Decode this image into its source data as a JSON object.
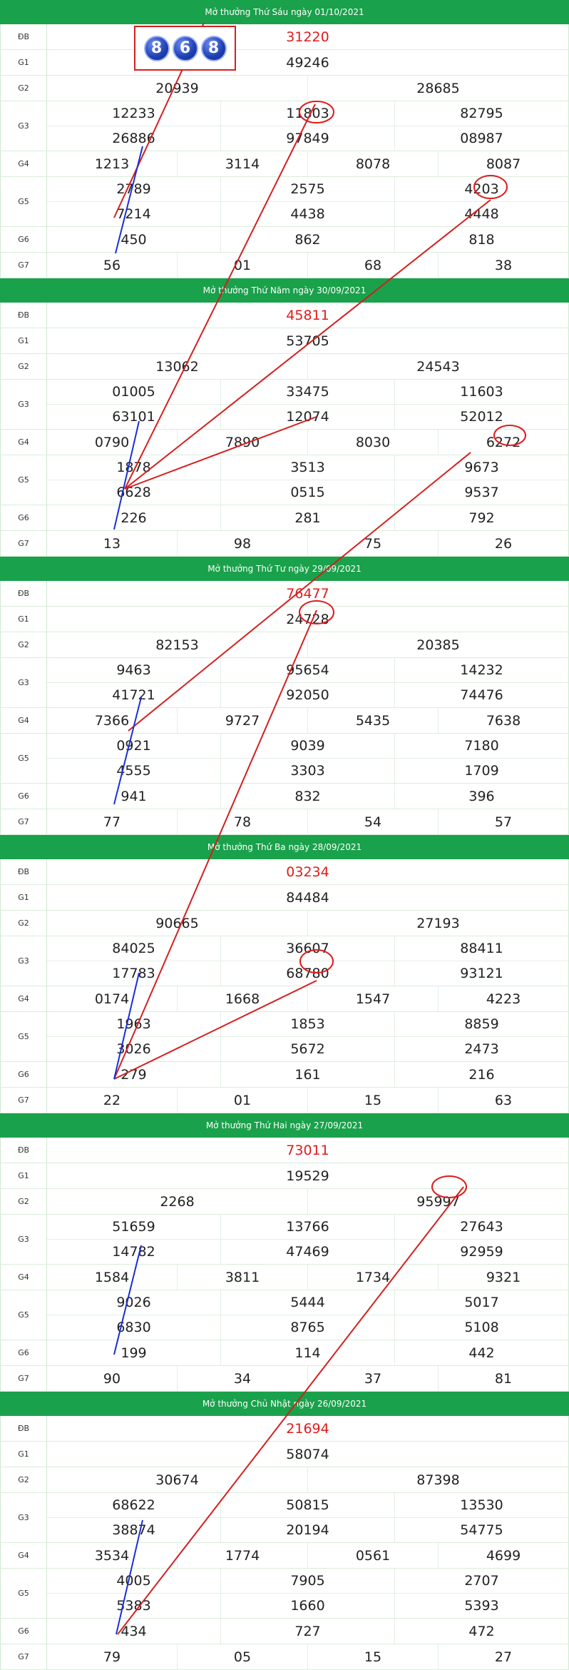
{
  "labels": {
    "db": "ĐB",
    "g1": "G1",
    "g2": "G2",
    "g3": "G3",
    "g4": "G4",
    "g5": "G5",
    "g6": "G6",
    "g7": "G7"
  },
  "highlight": {
    "digits": [
      "8",
      "6",
      "8"
    ]
  },
  "draws": [
    {
      "title": "Mở thưởng Thứ Sáu ngày 01/10/2021",
      "db": "31220",
      "g1": "49246",
      "g2": [
        "20939",
        "28685"
      ],
      "g3": [
        [
          "12233",
          "11803",
          "82795"
        ],
        [
          "26886",
          "97849",
          "08987"
        ]
      ],
      "g4": [
        "1213",
        "3114",
        "8078",
        "8087"
      ],
      "g5": [
        [
          "2789",
          "2575",
          "4203"
        ],
        [
          "7214",
          "4438",
          "4448"
        ]
      ],
      "g6": [
        "450",
        "862",
        "818"
      ],
      "g7": [
        "56",
        "01",
        "68",
        "38"
      ]
    },
    {
      "title": "Mở thưởng Thứ Năm ngày 30/09/2021",
      "db": "45811",
      "g1": "53705",
      "g2": [
        "13062",
        "24543"
      ],
      "g3": [
        [
          "01005",
          "33475",
          "11603"
        ],
        [
          "63101",
          "12074",
          "52012"
        ]
      ],
      "g4": [
        "0790",
        "7890",
        "8030",
        "6272"
      ],
      "g5": [
        [
          "1878",
          "3513",
          "9673"
        ],
        [
          "6628",
          "0515",
          "9537"
        ]
      ],
      "g6": [
        "226",
        "281",
        "792"
      ],
      "g7": [
        "13",
        "98",
        "75",
        "26"
      ]
    },
    {
      "title": "Mở thưởng Thứ Tư ngày 29/09/2021",
      "db": "76477",
      "g1": "24728",
      "g2": [
        "82153",
        "20385"
      ],
      "g3": [
        [
          "9463",
          "95654",
          "14232"
        ],
        [
          "41721",
          "92050",
          "74476"
        ]
      ],
      "g4": [
        "7366",
        "9727",
        "5435",
        "7638"
      ],
      "g5": [
        [
          "0921",
          "9039",
          "7180"
        ],
        [
          "4555",
          "3303",
          "1709"
        ]
      ],
      "g6": [
        "941",
        "832",
        "396"
      ],
      "g7": [
        "77",
        "78",
        "54",
        "57"
      ]
    },
    {
      "title": "Mở thưởng Thứ Ba ngày 28/09/2021",
      "db": "03234",
      "g1": "84484",
      "g2": [
        "90665",
        "27193"
      ],
      "g3": [
        [
          "84025",
          "36607",
          "88411"
        ],
        [
          "17783",
          "68780",
          "93121"
        ]
      ],
      "g4": [
        "0174",
        "1668",
        "1547",
        "4223"
      ],
      "g5": [
        [
          "1963",
          "1853",
          "8859"
        ],
        [
          "3026",
          "5672",
          "2473"
        ]
      ],
      "g6": [
        "279",
        "161",
        "216"
      ],
      "g7": [
        "22",
        "01",
        "15",
        "63"
      ]
    },
    {
      "title": "Mở thưởng Thứ Hai ngày 27/09/2021",
      "db": "73011",
      "g1": "19529",
      "g2": [
        "2268",
        "95997"
      ],
      "g3": [
        [
          "51659",
          "13766",
          "27643"
        ],
        [
          "14782",
          "47469",
          "92959"
        ]
      ],
      "g4": [
        "1584",
        "3811",
        "1734",
        "9321"
      ],
      "g5": [
        [
          "9026",
          "5444",
          "5017"
        ],
        [
          "6830",
          "8765",
          "5108"
        ]
      ],
      "g6": [
        "199",
        "114",
        "442"
      ],
      "g7": [
        "90",
        "34",
        "37",
        "81"
      ]
    },
    {
      "title": "Mở thưởng Chủ Nhật ngày 26/09/2021",
      "db": "21694",
      "g1": "58074",
      "g2": [
        "30674",
        "87398"
      ],
      "g3": [
        [
          "68622",
          "50815",
          "13530"
        ],
        [
          "38874",
          "20194",
          "54775"
        ]
      ],
      "g4": [
        "3534",
        "1774",
        "0561",
        "4699"
      ],
      "g5": [
        [
          "4005",
          "7905",
          "2707"
        ],
        [
          "5383",
          "1660",
          "5393"
        ]
      ],
      "g6": [
        "434",
        "727",
        "472"
      ],
      "g7": [
        "79",
        "05",
        "15",
        "27"
      ]
    }
  ]
}
